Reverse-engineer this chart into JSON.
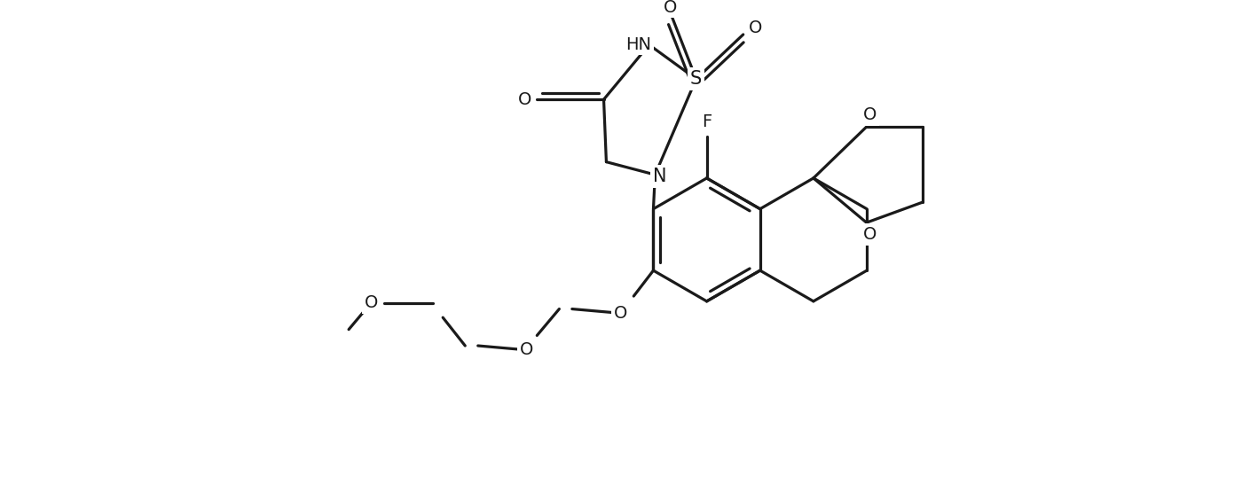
{
  "bg_color": "#ffffff",
  "line_color": "#1a1a1a",
  "line_width": 2.3,
  "font_size": 14,
  "figsize": [
    14.09,
    5.46
  ],
  "dpi": 100,
  "xlim": [
    0,
    14.09
  ],
  "ylim": [
    0,
    5.46
  ]
}
